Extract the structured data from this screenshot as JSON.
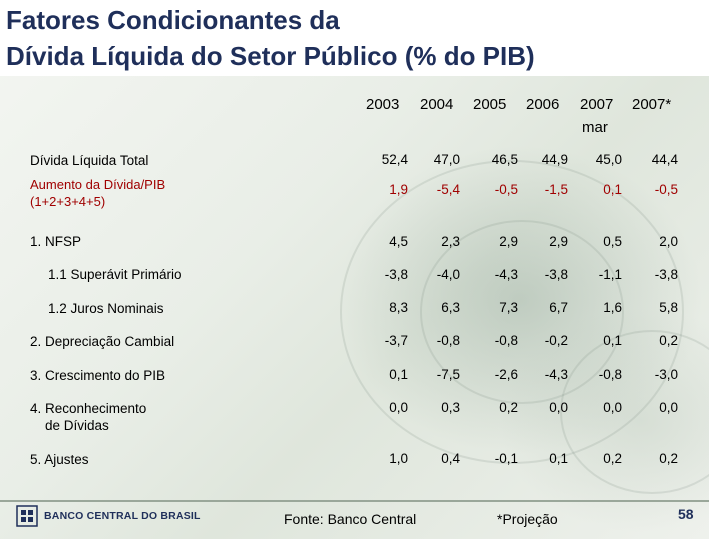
{
  "title_line1": "Fatores Condicionantes da",
  "title_line2": "Dívida Líquida do Setor Público (% do PIB)",
  "years": [
    "2003",
    "2004",
    "2005",
    "2006",
    "2007",
    "2007*"
  ],
  "year_sub": "mar",
  "rows": [
    {
      "label": "Dívida Líquida Total",
      "values": [
        "52,4",
        "47,0",
        "46,5",
        "44,9",
        "45,0",
        "44,4"
      ]
    },
    {
      "label": "Aumento da Dívida/PIB\n(1+2+3+4+5)",
      "values": [
        "1,9",
        "-5,4",
        "-0,5",
        "-1,5",
        "0,1",
        "-0,5"
      ]
    },
    {
      "label": "1. NFSP",
      "values": [
        "4,5",
        "2,3",
        "2,9",
        "2,9",
        "0,5",
        "2,0"
      ]
    },
    {
      "label": "1.1 Superávit Primário",
      "values": [
        "-3,8",
        "-4,0",
        "-4,3",
        "-3,8",
        "-1,1",
        "-3,8"
      ]
    },
    {
      "label": "1.2 Juros Nominais",
      "values": [
        "8,3",
        "6,3",
        "7,3",
        "6,7",
        "1,6",
        "5,8"
      ]
    },
    {
      "label": "2. Depreciação Cambial",
      "values": [
        "-3,7",
        "-0,8",
        "-0,8",
        "-0,2",
        "0,1",
        "0,2"
      ]
    },
    {
      "label": "3. Crescimento do PIB",
      "values": [
        "0,1",
        "-7,5",
        "-2,6",
        "-4,3",
        "-0,8",
        "-3,0"
      ]
    },
    {
      "label": "4. Reconhecimento\n    de Dívidas",
      "values": [
        "0,0",
        "0,3",
        "0,2",
        "0,0",
        "0,0",
        "0,0"
      ]
    },
    {
      "label": "5. Ajustes",
      "values": [
        "1,0",
        "0,4",
        "-0,1",
        "0,1",
        "0,2",
        "0,2"
      ]
    }
  ],
  "footer": {
    "logo_text": "BANCO CENTRAL DO BRASIL",
    "source": "Fonte: Banco Central",
    "projection_note": "*Projeção",
    "page_number": "58"
  },
  "colors": {
    "title": "#1f2f5a",
    "highlight": "#a00000"
  }
}
